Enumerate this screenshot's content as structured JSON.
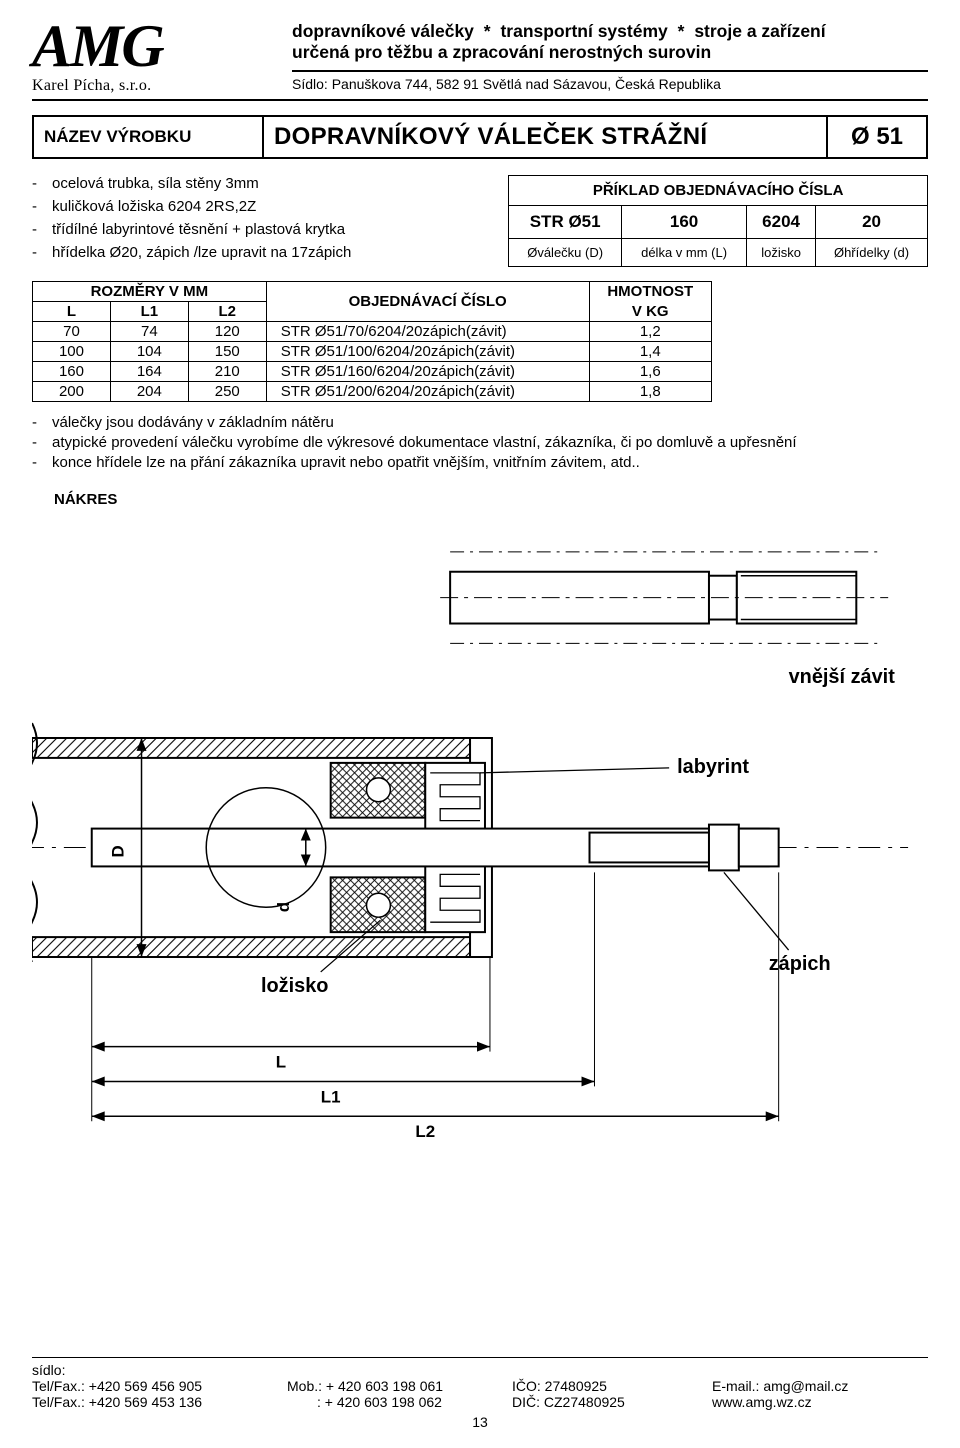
{
  "header": {
    "logo": "AMG",
    "company": "Karel Pícha, s.r.o.",
    "tagline_segments": [
      "dopravníkové válečky",
      "transportní systémy",
      "stroje a zařízení"
    ],
    "tagline_line2": "určená pro těžbu a zpracování nerostných surovin",
    "tagline_sep": "*",
    "seat_prefix": "Sídlo: ",
    "seat": "Panuškova 744, 582 91 Světlá nad Sázavou, Česká Republika"
  },
  "title": {
    "label": "NÁZEV VÝROBKU",
    "name": "DOPRAVNÍKOVÝ VÁLEČEK STRÁŽNÍ",
    "diameter": "Ø 51"
  },
  "specs": [
    "ocelová trubka, síla stěny 3mm",
    "kuličková ložiska 6204 2RS,2Z",
    "třídílné labyrintové těsnění + plastová krytka",
    "hřídelka Ø20, zápich /lze upravit na 17zápich"
  ],
  "order_example": {
    "title": "PŘÍKLAD OBJEDNÁVACÍHO ČÍSLA",
    "vals": [
      "STR Ø51",
      "160",
      "6204",
      "20"
    ],
    "desc": [
      "Øválečku (D)",
      "délka v mm (L)",
      "ložisko",
      "Øhřídelky (d)"
    ]
  },
  "size_table": {
    "head_group": "ROZMĚRY V MM",
    "head_L": "L",
    "head_L1": "L1",
    "head_L2": "L2",
    "head_order": "OBJEDNÁVACÍ ČÍSLO",
    "head_weight_l1": "HMOTNOST",
    "head_weight_l2": "V KG",
    "rows": [
      {
        "L": "70",
        "L1": "74",
        "L2": "120",
        "order": "STR Ø51/70/6204/20zápich(závit)",
        "w": "1,2"
      },
      {
        "L": "100",
        "L1": "104",
        "L2": "150",
        "order": "STR Ø51/100/6204/20zápich(závit)",
        "w": "1,4"
      },
      {
        "L": "160",
        "L1": "164",
        "L2": "210",
        "order": "STR Ø51/160/6204/20zápich(závit)",
        "w": "1,6"
      },
      {
        "L": "200",
        "L1": "204",
        "L2": "250",
        "order": "STR Ø51/200/6204/20zápich(závit)",
        "w": "1,8"
      }
    ]
  },
  "notes": [
    "válečky jsou dodávány v základním nátěru",
    "atypické provedení válečku vyrobíme dle výkresové dokumentace vlastní, zákazníka, či po domluvě a upřesnění",
    "konce hřídele lze na přání zákazníka upravit nebo opatřit vnějším, vnitřním závitem, atd.."
  ],
  "nakres_label": "NÁKRES",
  "drawing": {
    "labels": {
      "outer_thread": "vnější závit",
      "labyrinth": "labyrint",
      "bearing": "ložisko",
      "groove": "zápich",
      "D": "D",
      "d": "d",
      "L": "L",
      "L1": "L1",
      "L2": "L2"
    },
    "colors": {
      "stroke": "#000000",
      "fill": "#ffffff",
      "hatch": "#000000"
    }
  },
  "footer": {
    "sidlo_label": "sídlo:",
    "telfax1": "Tel/Fax.: +420 569 456 905",
    "telfax2": "Tel/Fax.: +420 569 453 136",
    "mob_label": "Mob.: ",
    "mob1": "+ 420 603 198 061",
    "mob2_label": ": ",
    "mob2": "+ 420 603 198 062",
    "ico": "IČO: 27480925",
    "dic": "DIČ: CZ27480925",
    "email_label": "E-mail.: ",
    "email": "amg@mail.cz",
    "www": "www.amg.wz.cz",
    "page": "13"
  }
}
